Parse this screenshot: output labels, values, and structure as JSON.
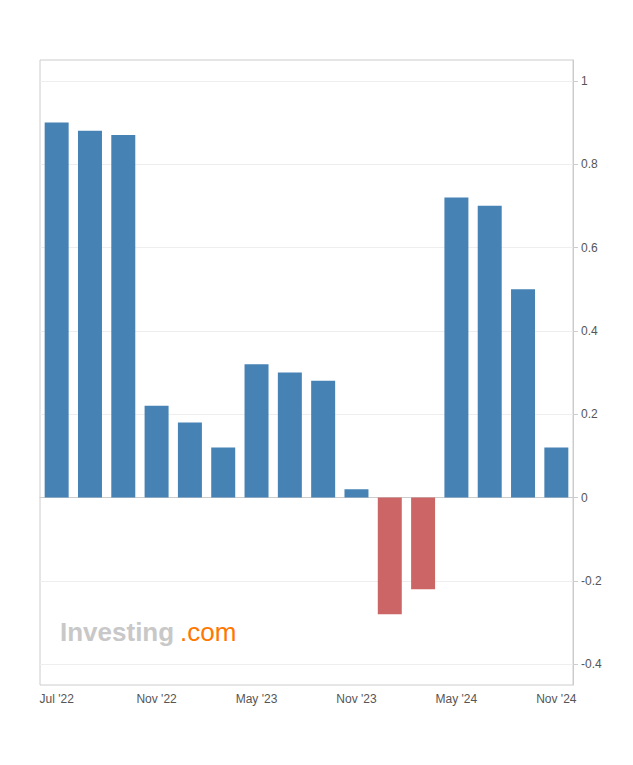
{
  "chart_data": {
    "type": "bar",
    "categories": [
      "Jul '22",
      null,
      null,
      "Nov '22",
      null,
      null,
      "May '23",
      null,
      null,
      "Nov '23",
      null,
      null,
      "May '24",
      null,
      null,
      "Nov '24"
    ],
    "values": [
      0.9,
      0.88,
      0.87,
      0.22,
      0.18,
      0.12,
      0.32,
      0.3,
      0.28,
      0.02,
      -0.28,
      -0.22,
      0.72,
      0.7,
      0.5,
      0.12
    ],
    "colors": [
      "#4682b4",
      "#4682b4",
      "#4682b4",
      "#4682b4",
      "#4682b4",
      "#4682b4",
      "#4682b4",
      "#4682b4",
      "#4682b4",
      "#4682b4",
      "#cc6666",
      "#cc6666",
      "#4682b4",
      "#4682b4",
      "#4682b4",
      "#4682b4"
    ],
    "ylim": [
      -0.45,
      1.05
    ],
    "yticks": [
      -0.4,
      -0.2,
      0,
      0.2,
      0.4,
      0.6,
      0.8,
      1
    ],
    "grid": true,
    "annotations": [
      "Investing",
      ".com"
    ]
  }
}
